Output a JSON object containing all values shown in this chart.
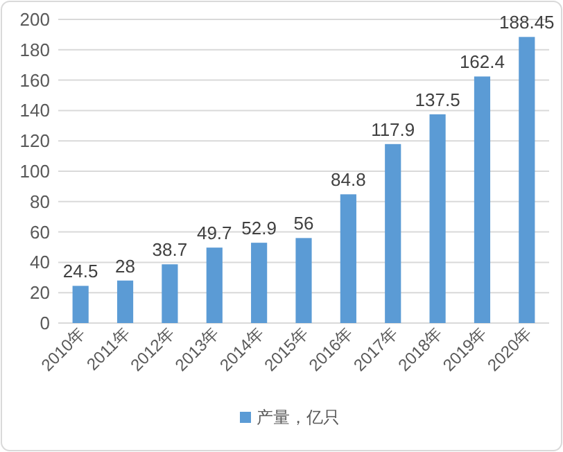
{
  "chart_data": {
    "type": "bar",
    "categories": [
      "2010年",
      "2011年",
      "2012年",
      "2013年",
      "2014年",
      "2015年",
      "2016年",
      "2017年",
      "2018年",
      "2019年",
      "2020年"
    ],
    "series": [
      {
        "name": "产量，亿只",
        "color": "#5b9bd5",
        "values": [
          24.5,
          28,
          38.7,
          49.7,
          52.9,
          56,
          84.8,
          117.9,
          137.5,
          162.4,
          188.45
        ]
      }
    ],
    "ylim": [
      0,
      200
    ],
    "yticks": [
      0,
      20,
      40,
      60,
      80,
      100,
      120,
      140,
      160,
      180,
      200
    ],
    "grid": "y",
    "legend": "bottom",
    "data_labels": true
  }
}
